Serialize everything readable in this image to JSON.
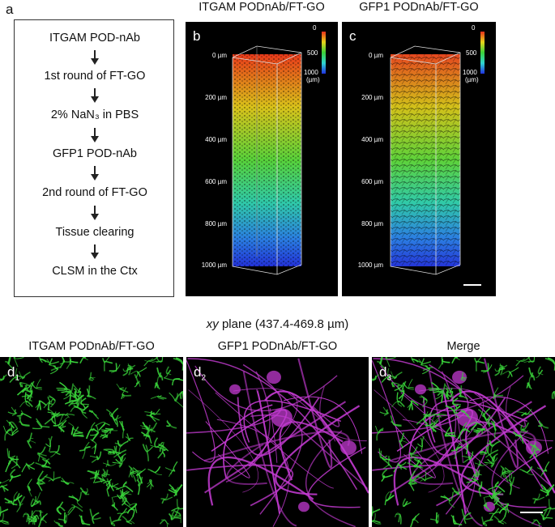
{
  "panels": {
    "a": {
      "letter": "a",
      "steps": [
        "ITGAM POD-nAb",
        "1st round of FT-GO",
        "2% NaN₃ in PBS",
        "GFP1 POD-nAb",
        "2nd round of FT-GO",
        "Tissue clearing",
        "CLSM in the Ctx"
      ]
    },
    "b": {
      "letter": "b",
      "title": "ITGAM PODnAb/FT-GO"
    },
    "c": {
      "letter": "c",
      "title": "GFP1 PODnAb/FT-GO"
    },
    "colorbar": {
      "top_label": "0",
      "mid_label": "500",
      "bottom_label": "1000",
      "unit": "(µm)"
    },
    "depth_labels": [
      "0 µm",
      "200 µm",
      "400 µm",
      "600 µm",
      "800 µm",
      "1000 µm"
    ],
    "xy_plane": {
      "title_italic": "xy",
      "title_rest": " plane (437.4-469.8 µm)"
    },
    "d1": {
      "letter": "d",
      "sub": "1",
      "title": "ITGAM PODnAb/FT-GO"
    },
    "d2": {
      "letter": "d",
      "sub": "2",
      "title": "GFP1 PODnAb/FT-GO"
    },
    "d3": {
      "letter": "d",
      "sub": "3",
      "title": "Merge"
    }
  },
  "colors": {
    "green_signal": "#39d23a",
    "magenta_signal": "#c23ad0",
    "panel_bg": "#000000"
  }
}
